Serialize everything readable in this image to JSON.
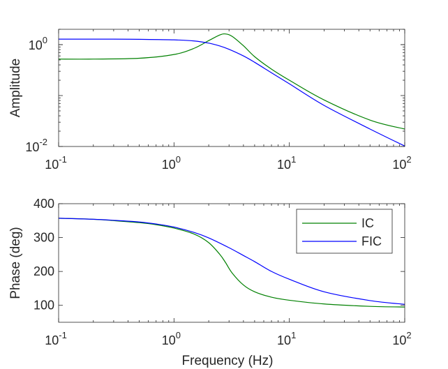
{
  "chart_data": [
    {
      "type": "line",
      "xlabel": "",
      "ylabel": "Amplitude",
      "xscale": "log",
      "yscale": "log",
      "xlim": [
        0.1,
        100
      ],
      "ylim": [
        0.01,
        2
      ],
      "xticks": [
        {
          "v": 0.1,
          "base": "10",
          "exp": "-1"
        },
        {
          "v": 1,
          "base": "10",
          "exp": "0"
        },
        {
          "v": 10,
          "base": "10",
          "exp": "1"
        },
        {
          "v": 100,
          "base": "10",
          "exp": "2"
        }
      ],
      "yticks": [
        {
          "v": 0.01,
          "base": "10",
          "exp": "-2"
        },
        {
          "v": 1,
          "base": "10",
          "exp": "0"
        }
      ],
      "legend": "none",
      "series": [
        {
          "name": "IC",
          "color": "#008000",
          "x": [
            0.1,
            0.2,
            0.5,
            1,
            1.5,
            2,
            2.5,
            2.8,
            3.2,
            4,
            5,
            7,
            10,
            20,
            50,
            100
          ],
          "y": [
            0.52,
            0.52,
            0.54,
            0.64,
            0.85,
            1.2,
            1.55,
            1.62,
            1.45,
            0.95,
            0.58,
            0.33,
            0.2,
            0.082,
            0.033,
            0.022
          ]
        },
        {
          "name": "FIC",
          "color": "#0000ff",
          "x": [
            0.1,
            0.3,
            0.5,
            1,
            1.5,
            2,
            2.5,
            3,
            4,
            5,
            7,
            10,
            20,
            50,
            100
          ],
          "y": [
            1.28,
            1.28,
            1.27,
            1.24,
            1.18,
            1.07,
            0.94,
            0.81,
            0.6,
            0.45,
            0.28,
            0.17,
            0.064,
            0.022,
            0.0102
          ]
        }
      ]
    },
    {
      "type": "line",
      "xlabel": "Frequency (Hz)",
      "ylabel": "Phase (deg)",
      "xscale": "log",
      "yscale": "linear",
      "xlim": [
        0.1,
        100
      ],
      "ylim": [
        50,
        400
      ],
      "xticks": [
        {
          "v": 0.1,
          "base": "10",
          "exp": "-1"
        },
        {
          "v": 1,
          "base": "10",
          "exp": "0"
        },
        {
          "v": 10,
          "base": "10",
          "exp": "1"
        },
        {
          "v": 100,
          "base": "10",
          "exp": "2"
        }
      ],
      "yticks": [
        {
          "v": 100,
          "label": "100"
        },
        {
          "v": 200,
          "label": "200"
        },
        {
          "v": 300,
          "label": "300"
        },
        {
          "v": 400,
          "label": "400"
        }
      ],
      "legend": "top-right",
      "series": [
        {
          "name": "IC",
          "color": "#008000",
          "x": [
            0.1,
            0.2,
            0.3,
            0.5,
            0.7,
            1,
            1.5,
            2,
            2.5,
            2.8,
            3.2,
            4,
            5,
            7,
            10,
            20,
            50,
            100
          ],
          "y": [
            357,
            354,
            350,
            344,
            338,
            328,
            310,
            285,
            250,
            226,
            195,
            160,
            140,
            124,
            115,
            104,
            97,
            95
          ]
        },
        {
          "name": "FIC",
          "color": "#0000ff",
          "x": [
            0.1,
            0.2,
            0.3,
            0.5,
            0.7,
            1,
            1.5,
            2,
            3,
            4,
            5,
            7,
            10,
            20,
            50,
            100
          ],
          "y": [
            357,
            354,
            351,
            346,
            340,
            331,
            315,
            299,
            270,
            247,
            229,
            200,
            177,
            140,
            114,
            103
          ]
        }
      ]
    }
  ]
}
